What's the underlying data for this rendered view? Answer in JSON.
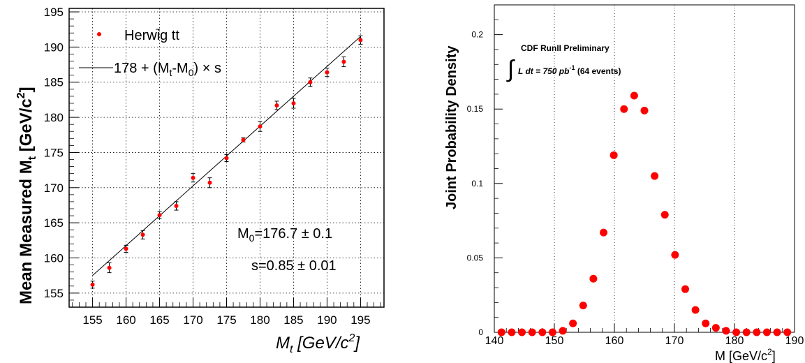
{
  "chart_data": [
    {
      "type": "scatter",
      "xlabel_main": "M",
      "xlabel_sub": "t",
      "xlabel_unit": " [GeV/c",
      "xlabel_sup": "2",
      "xlabel_close": "]",
      "ylabel_main": "Mean Measured M",
      "ylabel_sub": "t",
      "ylabel_unit": " [GeV/c",
      "ylabel_sup": "2",
      "ylabel_close": "]",
      "xlim": [
        151.5,
        198.5
      ],
      "ylim": [
        153,
        195.5
      ],
      "xticks": [
        "155",
        "160",
        "165",
        "170",
        "175",
        "180",
        "185",
        "190",
        "195"
      ],
      "yticks": [
        "155",
        "160",
        "165",
        "170",
        "175",
        "180",
        "185",
        "190",
        "195"
      ],
      "grid": true,
      "legend_placement": "top-left",
      "series": [
        {
          "name": "Herwig tt̄",
          "name_base": "Herwig t",
          "name_bar": "t",
          "x": [
            155,
            157.5,
            160,
            162.5,
            165,
            167.5,
            170,
            172.5,
            175,
            177.5,
            180,
            182.5,
            185,
            187.5,
            190,
            192.5,
            195
          ],
          "y": [
            156.2,
            158.6,
            161.3,
            163.3,
            166.1,
            167.4,
            171.4,
            170.7,
            174.2,
            176.8,
            178.7,
            181.7,
            182.0,
            185.0,
            186.4,
            187.9,
            191.0
          ],
          "yerr": [
            0.5,
            0.7,
            0.5,
            0.6,
            0.5,
            0.6,
            0.6,
            0.7,
            0.5,
            0.3,
            0.7,
            0.6,
            0.7,
            0.6,
            0.6,
            0.7,
            0.6
          ]
        },
        {
          "name": "178 + (Mt-M0) × s",
          "legend_parts": [
            "178 + (M",
            "t",
            "-M",
            "0",
            ") × s"
          ],
          "x": [
            155,
            195
          ],
          "y": [
            157.5,
            191.5
          ]
        }
      ],
      "annotations": [
        {
          "parts": [
            "M",
            "0",
            "=176.7 ± 0.1"
          ]
        },
        {
          "text": "s=0.85  ± 0.01"
        }
      ]
    },
    {
      "type": "scatter",
      "ylabel": "Joint Probability Density",
      "xlabel_main": "M",
      "xlabel_unit": "[GeV/c",
      "xlabel_sup": "2",
      "xlabel_close": "]",
      "xlim": [
        140,
        190
      ],
      "ylim": [
        0,
        0.22
      ],
      "xticks": [
        "140",
        "150",
        "160",
        "170",
        "180",
        "190"
      ],
      "yticks": [
        "0",
        "0.05",
        "0.1",
        "0.15",
        "0.2"
      ],
      "grid": "vertical",
      "annotation_title": "CDF RunII Preliminary",
      "annotation_lumi": [
        "L dt = 750 pb",
        "-1",
        " (64 events)"
      ],
      "series": [
        {
          "x": [
            141.2,
            142.9,
            144.6,
            146.3,
            148.0,
            149.7,
            151.4,
            153.1,
            154.8,
            156.5,
            158.2,
            159.9,
            161.6,
            163.3,
            165.0,
            166.7,
            168.4,
            170.1,
            171.8,
            173.5,
            175.2,
            176.9,
            178.6,
            180.3,
            182.0,
            183.7,
            185.4,
            187.1,
            188.8
          ],
          "y": [
            0,
            0,
            0,
            0,
            0,
            0,
            0.001,
            0.006,
            0.018,
            0.036,
            0.067,
            0.119,
            0.15,
            0.159,
            0.149,
            0.105,
            0.079,
            0.052,
            0.029,
            0.015,
            0.006,
            0.003,
            0.001,
            0,
            0,
            0,
            0,
            0,
            0
          ]
        }
      ]
    }
  ]
}
